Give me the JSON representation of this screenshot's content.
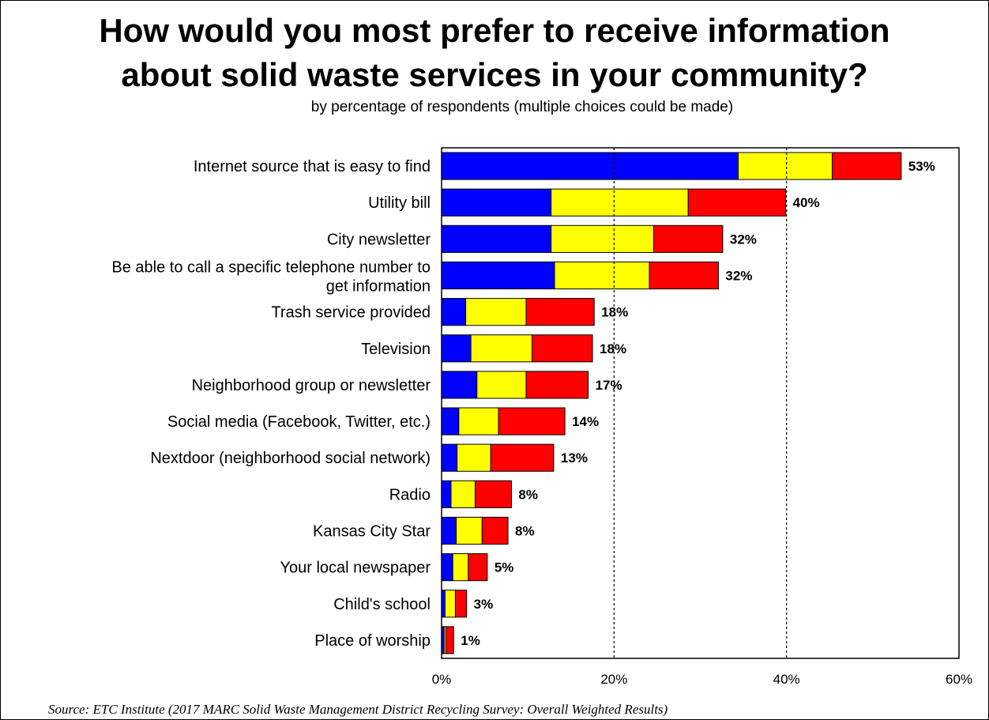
{
  "title_line1": "How would you most prefer to receive information",
  "title_line2": "about solid waste services in your community?",
  "subtitle": "by percentage of respondents (multiple choices could be made)",
  "source": "Source:  ETC Institute (2017 MARC Solid Waste Management District Recycling Survey: Overall Weighted Results)",
  "colors": {
    "series1": "#0000FF",
    "series2": "#FFFF00",
    "series3": "#FF0000"
  },
  "chart_data": {
    "type": "bar",
    "orientation": "horizontal",
    "stacked": true,
    "categories": [
      [
        "Internet source that is easy to find"
      ],
      [
        "Utility bill"
      ],
      [
        "City newsletter"
      ],
      [
        "Be able to call a specific telephone number to",
        "get information"
      ],
      [
        "Trash service provided"
      ],
      [
        "Television"
      ],
      [
        "Neighborhood group or newsletter"
      ],
      [
        "Social media (Facebook, Twitter, etc.)"
      ],
      [
        "Nextdoor (neighborhood social network)"
      ],
      [
        "Radio"
      ],
      [
        "Kansas City Star"
      ],
      [
        "Your local newspaper"
      ],
      [
        "Child's school"
      ],
      [
        "Place of worship"
      ]
    ],
    "series": [
      {
        "color": "#0000FF",
        "values": [
          34.4,
          12.7,
          12.7,
          13.1,
          2.8,
          3.4,
          4.1,
          2.0,
          1.8,
          1.1,
          1.7,
          1.3,
          0.4,
          0.3
        ]
      },
      {
        "color": "#FFFF00",
        "values": [
          10.9,
          15.9,
          11.9,
          11.0,
          7.0,
          7.1,
          5.7,
          4.6,
          3.9,
          2.8,
          3.0,
          1.8,
          1.2,
          0.2
        ]
      },
      {
        "color": "#FF0000",
        "values": [
          8.0,
          11.3,
          8.0,
          8.0,
          7.9,
          7.0,
          7.2,
          7.7,
          7.3,
          4.2,
          3.0,
          2.2,
          1.3,
          0.9
        ]
      }
    ],
    "totals_labels": [
      "53%",
      "40%",
      "32%",
      "32%",
      "18%",
      "18%",
      "17%",
      "14%",
      "13%",
      "8%",
      "8%",
      "5%",
      "3%",
      "1%"
    ],
    "xlim": [
      0,
      60
    ],
    "xticks": [
      "0%",
      "20%",
      "40%",
      "60%"
    ],
    "gridlines": [
      20,
      40
    ],
    "grid": "dashed vertical"
  }
}
